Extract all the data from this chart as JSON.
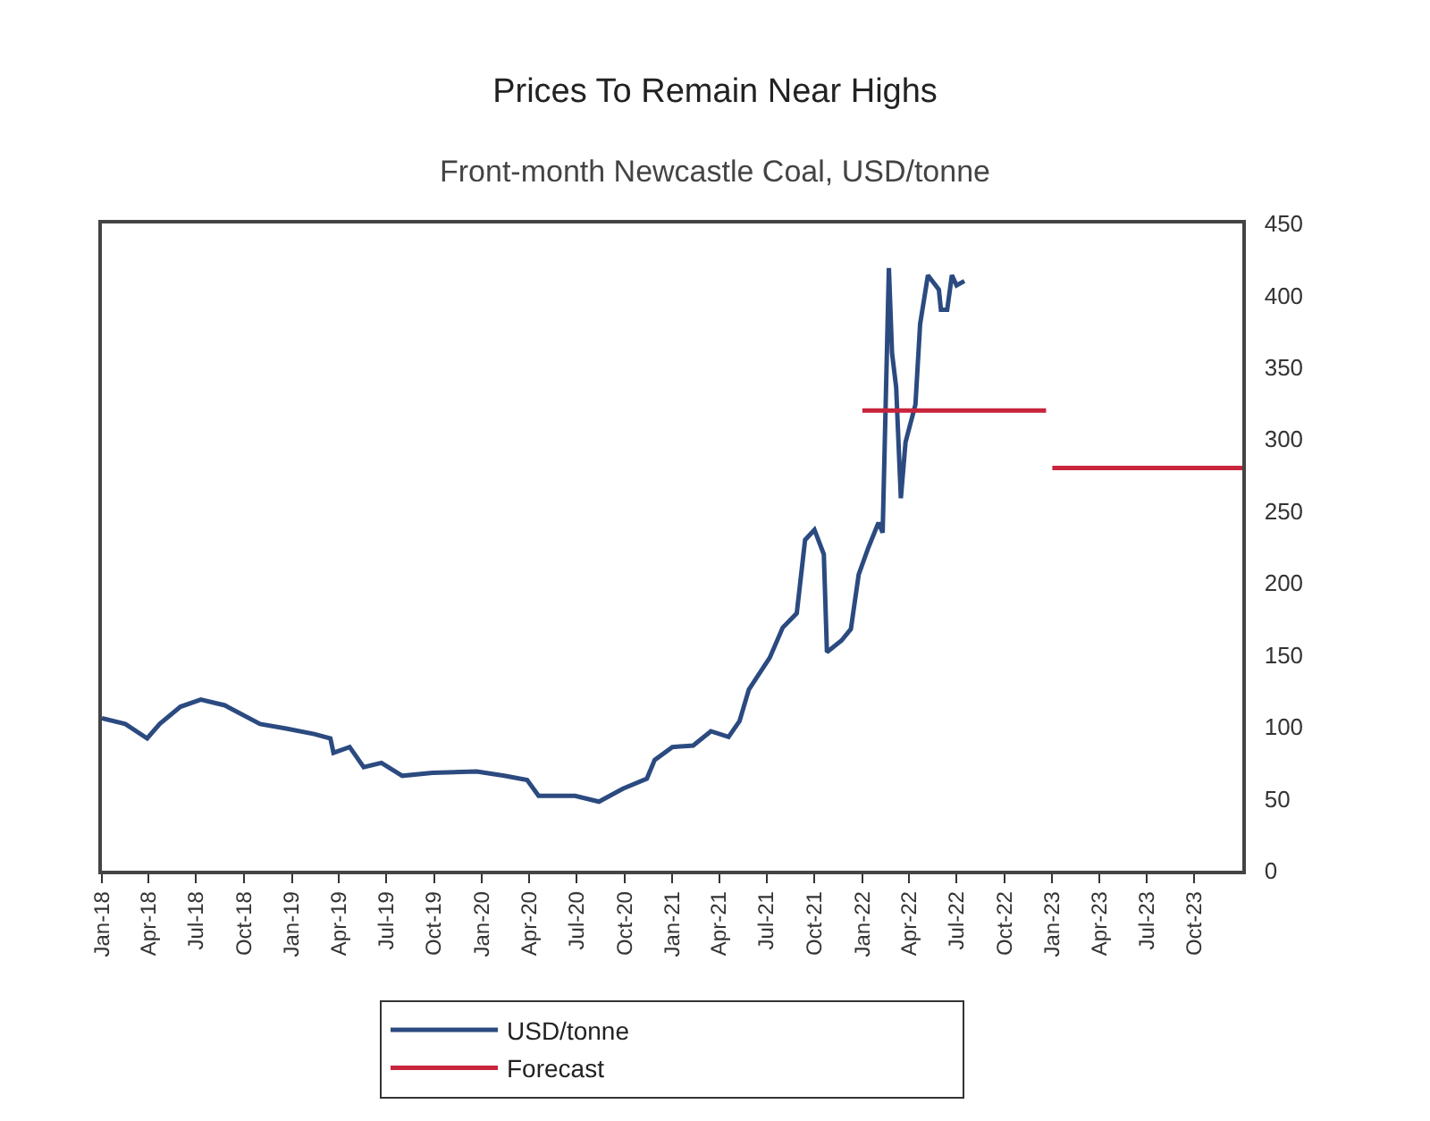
{
  "chart_data": {
    "type": "line",
    "title": "Prices To Remain Near Highs",
    "subtitle": "Front-month Newcastle Coal, USD/tonne",
    "series": [
      {
        "name": "USD/tonne",
        "color": "#2b4a80",
        "x": [
          "2018-01-01",
          "2018-02-15",
          "2018-03-29",
          "2018-04-22",
          "2018-06-01",
          "2018-07-10",
          "2018-08-25",
          "2018-11-01",
          "2018-12-19",
          "2019-02-13",
          "2019-03-16",
          "2019-03-22",
          "2019-04-22",
          "2019-05-19",
          "2019-06-22",
          "2019-08-01",
          "2019-09-28",
          "2019-12-22",
          "2020-02-13",
          "2020-03-28",
          "2020-04-19",
          "2020-06-28",
          "2020-08-13",
          "2020-09-28",
          "2020-11-13",
          "2020-11-28",
          "2021-01-01",
          "2021-02-10",
          "2021-03-16",
          "2021-04-19",
          "2021-05-10",
          "2021-05-28",
          "2021-07-07",
          "2021-08-01",
          "2021-08-28",
          "2021-09-13",
          "2021-10-01",
          "2021-10-19",
          "2021-10-25",
          "2021-11-22",
          "2021-12-10",
          "2021-12-25",
          "2022-01-13",
          "2022-02-01",
          "2022-02-09",
          "2022-02-21",
          "2022-02-27",
          "2022-03-07",
          "2022-03-16",
          "2022-03-25",
          "2022-04-13",
          "2022-04-22",
          "2022-05-07",
          "2022-05-28",
          "2022-06-01",
          "2022-06-13",
          "2022-06-22",
          "2022-07-01",
          "2022-07-16"
        ],
        "values": [
          106,
          102,
          92,
          102,
          114,
          119,
          115,
          102,
          99,
          95,
          92,
          82,
          86,
          72,
          75,
          66,
          68,
          69,
          66,
          63,
          52,
          52,
          48,
          57,
          64,
          77,
          86,
          87,
          97,
          93,
          104,
          126,
          148,
          169,
          179,
          230,
          237,
          220,
          152,
          160,
          168,
          206,
          225,
          242,
          235,
          419,
          360,
          336,
          259,
          298,
          324,
          380,
          414,
          404,
          390,
          390,
          414,
          407,
          410
        ]
      },
      {
        "name": "Forecast",
        "color": "#c8243c",
        "x": [
          "2022-01-01",
          "2022-12-20",
          "2022-12-25",
          "2023-01-01",
          "2024-01-01"
        ],
        "values": [
          320,
          320,
          null,
          280,
          280
        ]
      }
    ],
    "xlim": [
      "2018-01-01",
      "2024-01-01"
    ],
    "xticks": [
      {
        "value": "2018-01-01",
        "label": "Jan-18"
      },
      {
        "value": "2018-04-01",
        "label": "Apr-18"
      },
      {
        "value": "2018-07-01",
        "label": "Jul-18"
      },
      {
        "value": "2018-10-01",
        "label": "Oct-18"
      },
      {
        "value": "2019-01-01",
        "label": "Jan-19"
      },
      {
        "value": "2019-04-01",
        "label": "Apr-19"
      },
      {
        "value": "2019-07-01",
        "label": "Jul-19"
      },
      {
        "value": "2019-10-01",
        "label": "Oct-19"
      },
      {
        "value": "2020-01-01",
        "label": "Jan-20"
      },
      {
        "value": "2020-04-01",
        "label": "Apr-20"
      },
      {
        "value": "2020-07-01",
        "label": "Jul-20"
      },
      {
        "value": "2020-10-01",
        "label": "Oct-20"
      },
      {
        "value": "2021-01-01",
        "label": "Jan-21"
      },
      {
        "value": "2021-04-01",
        "label": "Apr-21"
      },
      {
        "value": "2021-07-01",
        "label": "Jul-21"
      },
      {
        "value": "2021-10-01",
        "label": "Oct-21"
      },
      {
        "value": "2022-01-01",
        "label": "Jan-22"
      },
      {
        "value": "2022-04-01",
        "label": "Apr-22"
      },
      {
        "value": "2022-07-01",
        "label": "Jul-22"
      },
      {
        "value": "2022-10-01",
        "label": "Oct-22"
      },
      {
        "value": "2023-01-01",
        "label": "Jan-23"
      },
      {
        "value": "2023-04-01",
        "label": "Apr-23"
      },
      {
        "value": "2023-07-01",
        "label": "Jul-23"
      },
      {
        "value": "2023-10-01",
        "label": "Oct-23"
      }
    ],
    "ylim": [
      0,
      450
    ],
    "yticks": [
      0,
      50,
      100,
      150,
      200,
      250,
      300,
      350,
      400,
      450
    ],
    "grid": false,
    "legend": "bottom",
    "marker": "none",
    "line_style": "solid"
  }
}
